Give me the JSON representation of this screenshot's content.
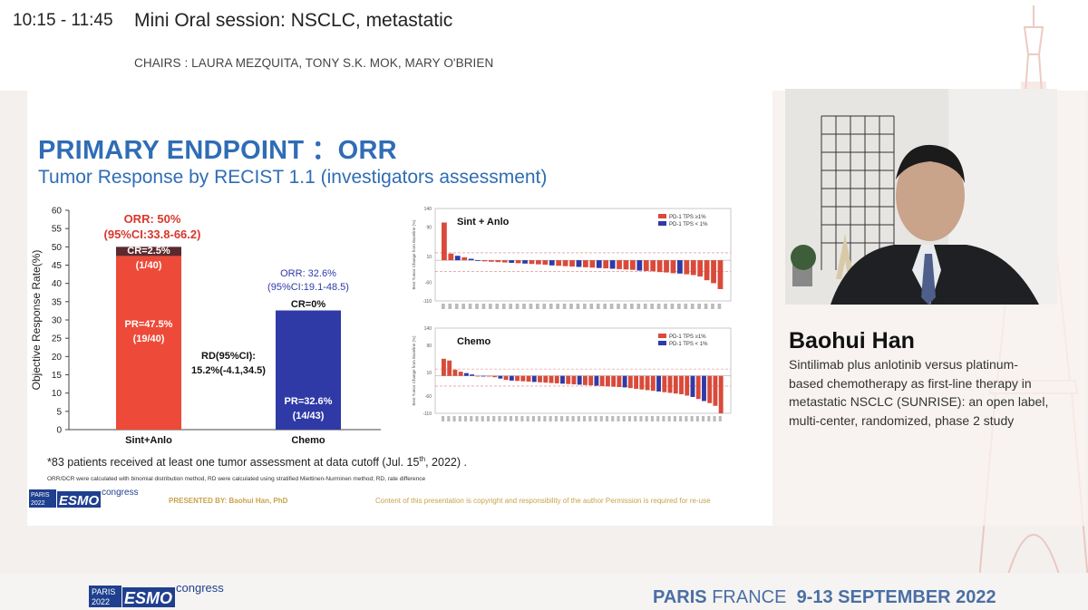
{
  "header": {
    "time": "10:15 - 11:45",
    "session_title": "Mini Oral session: NSCLC, metastatic",
    "chairs": "CHAIRS : LAURA MEZQUITA, TONY S.K. MOK, MARY O'BRIEN"
  },
  "slide": {
    "title": "PRIMARY ENDPOINT ：ORR",
    "subtitle": "Tumor Response by RECIST 1.1 (investigators assessment)",
    "footnote_main": "*83 patients received at least one tumor assessment at data cutoff (Jul. 15",
    "footnote_sup": "th",
    "footnote_end": ", 2022) .",
    "footnote_small": "ORR/DCR were calculated with binomial distribution method, RD were calculated using stratified Miettinen-Nurminen method; RD, rate difference",
    "presented_by": "PRESENTED BY: Baohui Han, PhD",
    "copyright": "Content of this presentation is copyright and responsibility of the author Permission is required for re-use",
    "logo": {
      "city": "PARIS",
      "year": "2022",
      "brand": "ESMO",
      "word": "congress"
    }
  },
  "chart_data": [
    {
      "type": "bar",
      "ylabel": "Objective Response Rate(%)",
      "ylim": [
        0,
        60
      ],
      "yticks": [
        0,
        5,
        10,
        15,
        20,
        25,
        30,
        35,
        40,
        45,
        50,
        55,
        60
      ],
      "categories": [
        "Sint+Anlo",
        "Chemo"
      ],
      "series": [
        {
          "name": "PR",
          "values": [
            47.5,
            32.6
          ],
          "labels": [
            "PR=47.5%",
            "PR=32.6%"
          ],
          "counts": [
            "(19/40)",
            "(14/43)"
          ]
        },
        {
          "name": "CR",
          "values": [
            2.5,
            0
          ],
          "labels": [
            "CR=2.5%",
            "CR=0%"
          ],
          "counts": [
            "(1/40)",
            ""
          ]
        }
      ],
      "orr_labels": [
        {
          "line1": "ORR: 50%",
          "line2": "(95%CI:33.8-66.2)"
        },
        {
          "line1": "ORR: 32.6%",
          "line2": "(95%CI:19.1-48.5)"
        }
      ],
      "rd": {
        "line1": "RD(95%CI):",
        "line2": "15.2%(-4.1,34.5)"
      },
      "colors": {
        "pr_arm1": "#ee4a39",
        "cr_arm1": "#5a2a2e",
        "pr_arm2": "#2f3aa6",
        "orr_arm1": "#d9382c",
        "orr_arm2": "#2f3aa6"
      }
    },
    {
      "type": "bar",
      "title": "Sint + Anlo",
      "ylabel": "Best Tumor Change from Baseline (%)",
      "ylim": [
        -110,
        140
      ],
      "yticks": [
        140,
        90,
        10,
        -60,
        -110
      ],
      "legend": [
        "PD-1 TPS ≥1%",
        "PD-1 TPS < 1%"
      ],
      "legend_position": "top-right",
      "colors": {
        "high": "#d94a3a",
        "low": "#2f3aa6"
      },
      "values": [
        102,
        18,
        12,
        8,
        4,
        0,
        -3,
        -4,
        -5,
        -6,
        -7,
        -8,
        -9,
        -10,
        -11,
        -12,
        -14,
        -15,
        -16,
        -17,
        -18,
        -19,
        -20,
        -21,
        -22,
        -23,
        -24,
        -25,
        -26,
        -28,
        -29,
        -30,
        -32,
        -33,
        -35,
        -36,
        -38,
        -40,
        -44,
        -54,
        -62,
        -78
      ],
      "groups": [
        "h",
        "h",
        "l",
        "h",
        "l",
        "l",
        "h",
        "h",
        "h",
        "h",
        "l",
        "h",
        "l",
        "h",
        "h",
        "h",
        "l",
        "h",
        "h",
        "h",
        "l",
        "h",
        "h",
        "l",
        "h",
        "l",
        "h",
        "h",
        "h",
        "l",
        "h",
        "h",
        "h",
        "h",
        "h",
        "l",
        "h",
        "h",
        "h",
        "h",
        "h",
        "h"
      ]
    },
    {
      "type": "bar",
      "title": "Chemo",
      "ylabel": "Best Tumor Change from Baseline (%)",
      "ylim": [
        -110,
        140
      ],
      "yticks": [
        140,
        90,
        10,
        -60,
        -110
      ],
      "legend": [
        "PD-1 TPS ≥1%",
        "PD-1 TPS < 1%"
      ],
      "legend_position": "top-right",
      "colors": {
        "high": "#d94a3a",
        "low": "#2f3aa6"
      },
      "values": [
        50,
        45,
        18,
        12,
        8,
        4,
        0,
        0,
        0,
        -4,
        -8,
        -12,
        -14,
        -15,
        -16,
        -17,
        -18,
        -19,
        -20,
        -21,
        -22,
        -23,
        -24,
        -25,
        -26,
        -27,
        -28,
        -29,
        -30,
        -31,
        -32,
        -33,
        -34,
        -36,
        -38,
        -40,
        -42,
        -44,
        -46,
        -48,
        -50,
        -52,
        -54,
        -58,
        -62,
        -68,
        -74,
        -80,
        -88,
        -110
      ],
      "groups": [
        "h",
        "h",
        "h",
        "h",
        "l",
        "l",
        "h",
        "l",
        "h",
        "h",
        "l",
        "h",
        "l",
        "h",
        "h",
        "h",
        "l",
        "h",
        "h",
        "h",
        "h",
        "l",
        "h",
        "h",
        "l",
        "h",
        "h",
        "l",
        "h",
        "h",
        "h",
        "h",
        "l",
        "h",
        "h",
        "h",
        "h",
        "h",
        "l",
        "h",
        "h",
        "h",
        "h",
        "h",
        "l",
        "h",
        "l",
        "h",
        "h",
        "h"
      ]
    }
  ],
  "speaker": {
    "name": "Baohui Han",
    "talk": "Sintilimab plus anlotinib versus platinum-based chemotherapy as first-line therapy in metastatic NSCLC (SUNRISE): an open label, multi-center, randomized, phase 2 study"
  },
  "footer": {
    "logo": {
      "city": "PARIS",
      "year": "2022",
      "brand": "ESMO",
      "word": "congress"
    },
    "city": "PARIS",
    "country": "FRANCE",
    "dates": "9-13 SEPTEMBER 2022"
  }
}
